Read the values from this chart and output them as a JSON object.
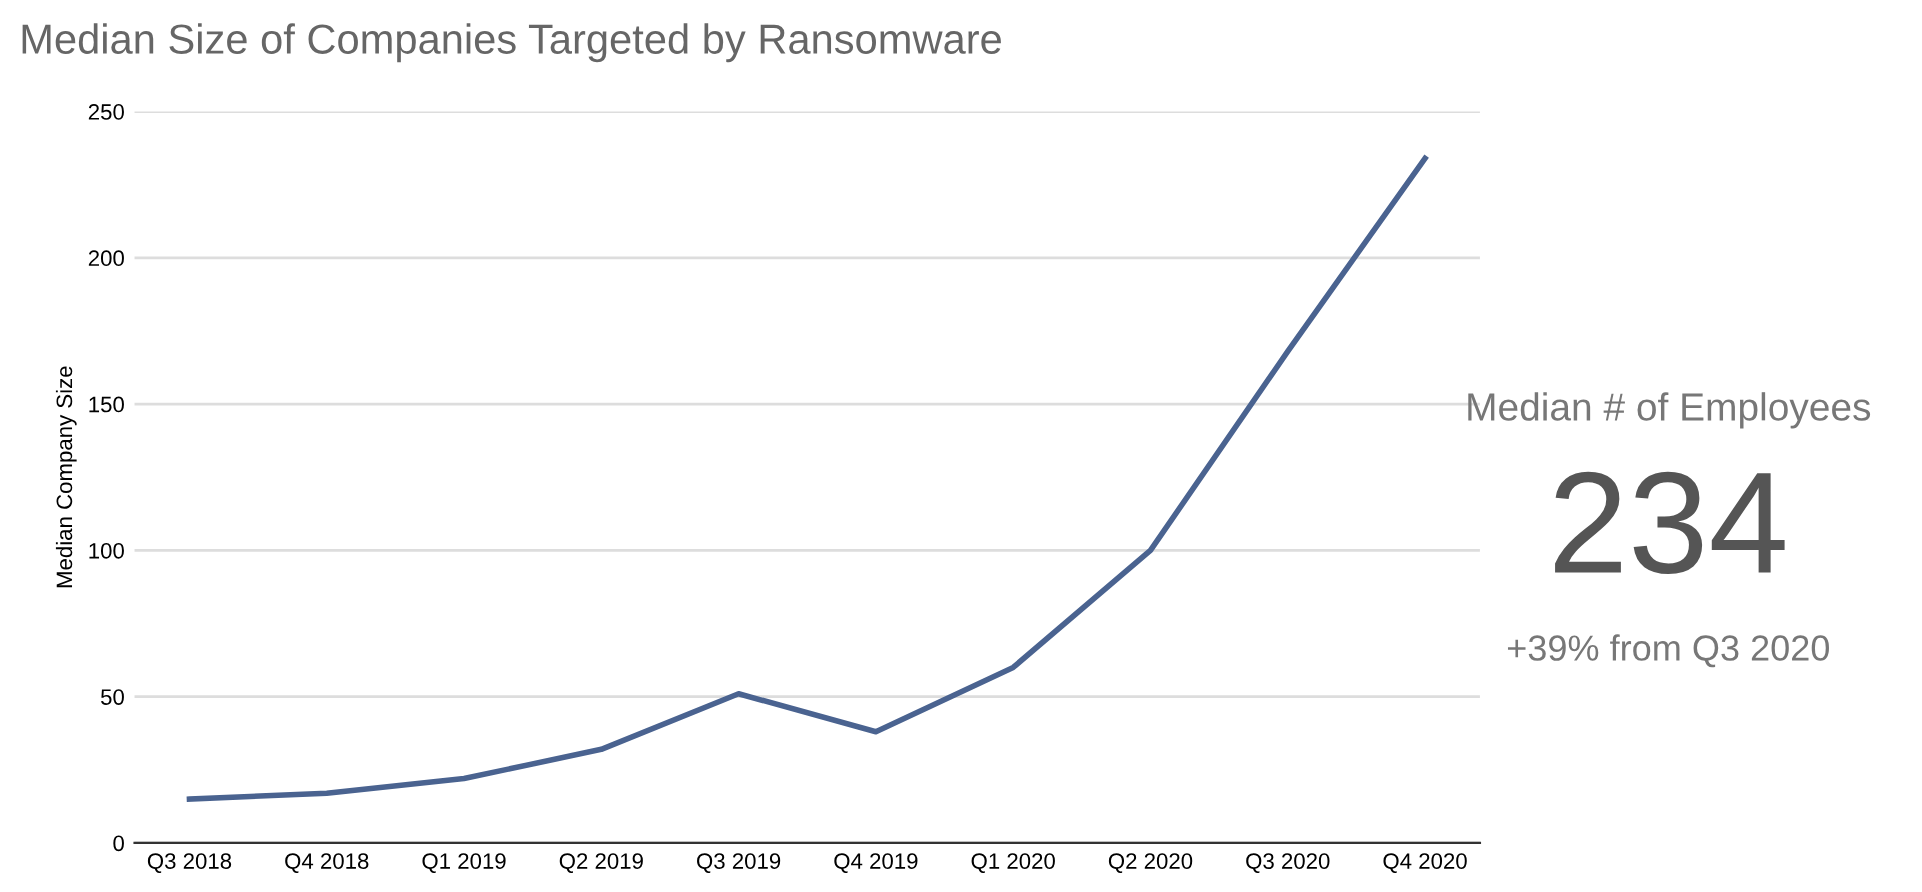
{
  "chart_data": {
    "type": "line",
    "title": "Median Size of Companies Targeted by Ransomware",
    "ylabel": "Median Company Size",
    "categories": [
      "Q3 2018",
      "Q4 2018",
      "Q1 2019",
      "Q2 2019",
      "Q3 2019",
      "Q4 2019",
      "Q1 2020",
      "Q2 2020",
      "Q3 2020",
      "Q4 2020"
    ],
    "series": [
      {
        "color": "#4a6390",
        "values": [
          15,
          17,
          22,
          32,
          51,
          38,
          60,
          100,
          168,
          234
        ]
      }
    ],
    "ylim": [
      0,
      250
    ],
    "yticks": [
      0,
      50,
      100,
      150,
      200,
      250
    ],
    "grid": "y",
    "marker": "none",
    "line_style": "solid",
    "legend": false,
    "annotations": [
      "Median # of Employees",
      "234",
      "+39% from Q3 2020"
    ]
  }
}
